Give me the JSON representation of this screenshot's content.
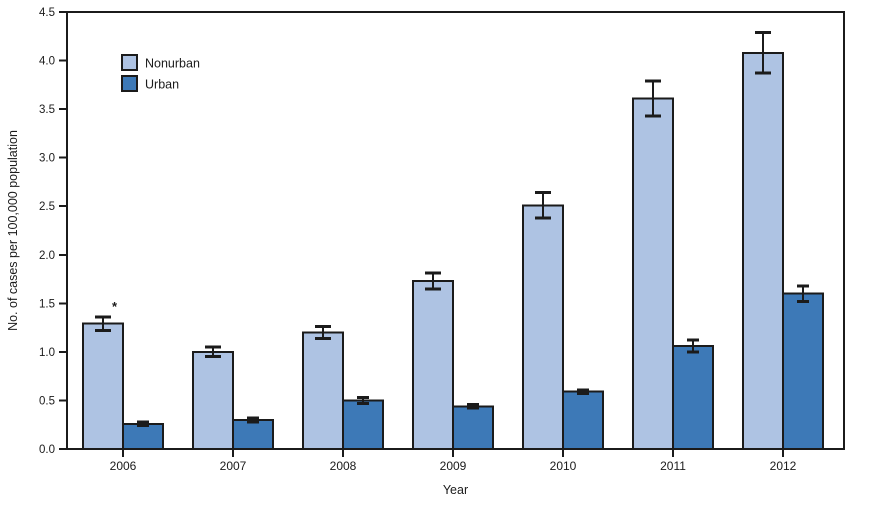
{
  "figure": {
    "background": "#ffffff",
    "ink_color": "#1b1b1b",
    "annotation_color": "#33517e"
  },
  "axes": {
    "y_tick_labels": [
      "0.0",
      "0.5",
      "1.0",
      "1.5",
      "2.0",
      "2.5",
      "3.0",
      "3.5",
      "4.0",
      "4.5"
    ]
  },
  "chart_data": {
    "type": "bar",
    "title": "",
    "xlabel": "Year",
    "ylabel": "No. of cases per 100,000 population",
    "categories": [
      "2006",
      "2007",
      "2008",
      "2009",
      "2010",
      "2011",
      "2012"
    ],
    "series": [
      {
        "name": "Nonurban",
        "color": "#aec3e3",
        "values": [
          1.29,
          1.0,
          1.2,
          1.73,
          2.51,
          3.61,
          4.08
        ],
        "errors": [
          0.07,
          0.05,
          0.06,
          0.08,
          0.13,
          0.18,
          0.21
        ]
      },
      {
        "name": "Urban",
        "color": "#3d79b7",
        "values": [
          0.26,
          0.3,
          0.5,
          0.44,
          0.59,
          1.06,
          1.6
        ],
        "errors": [
          0.02,
          0.02,
          0.03,
          0.02,
          0.02,
          0.06,
          0.08
        ]
      }
    ],
    "ylim": [
      0,
      4.5
    ],
    "y_tick_step": 0.5,
    "grid": false,
    "error_bars": true,
    "legend_position": "top-left-inside",
    "annotations": [
      {
        "text": "*",
        "category": "2006",
        "series": "Nonurban"
      }
    ]
  }
}
